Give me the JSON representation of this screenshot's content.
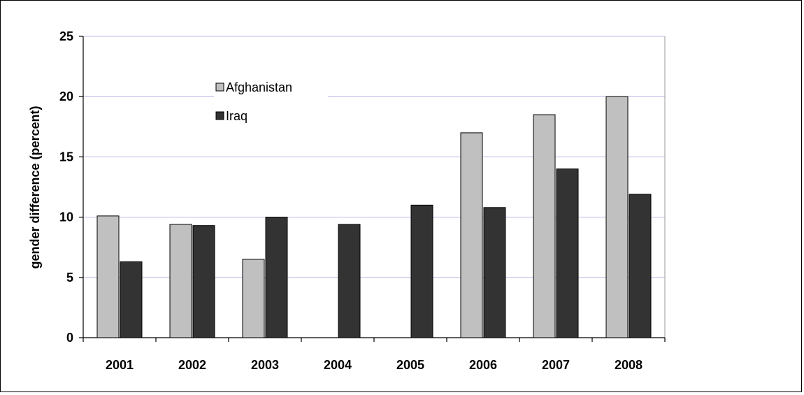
{
  "chart_data": {
    "type": "bar",
    "title": "",
    "xlabel": "",
    "ylabel": "gender difference  (percent)",
    "categories": [
      "2001",
      "2002",
      "2003",
      "2004",
      "2005",
      "2006",
      "2007",
      "2008"
    ],
    "series": [
      {
        "name": "Afghanistan",
        "color": "#c0c0c0",
        "values": [
          10.1,
          9.4,
          6.5,
          null,
          null,
          17.0,
          18.5,
          20.0
        ]
      },
      {
        "name": "Iraq",
        "color": "#333333",
        "values": [
          6.3,
          9.3,
          10.0,
          9.4,
          11.0,
          10.8,
          14.0,
          11.9
        ]
      }
    ],
    "ylim": [
      0,
      25
    ],
    "yticks": [
      0,
      5,
      10,
      15,
      20,
      25
    ],
    "grid": true,
    "legend": "top-left"
  }
}
